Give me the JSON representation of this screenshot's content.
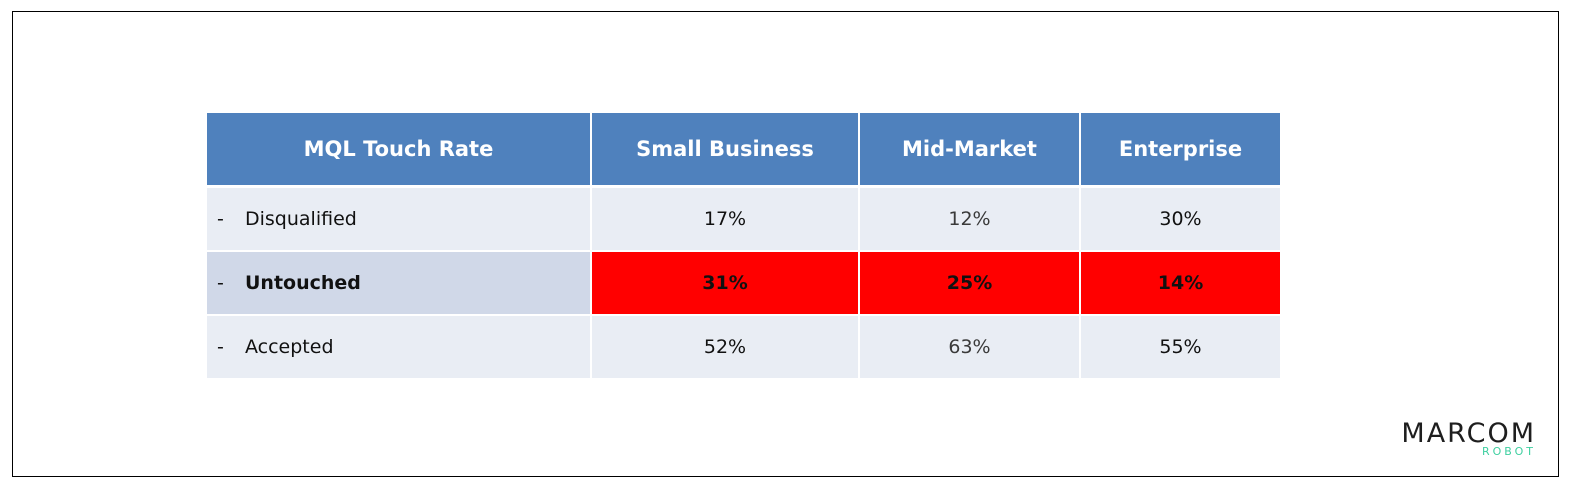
{
  "table": {
    "headers": [
      "MQL Touch Rate",
      "Small Business",
      "Mid-Market",
      "Enterprise"
    ],
    "rows": [
      {
        "dash": "-",
        "label": "Disqualified",
        "values": [
          "17%",
          "12%",
          "30%"
        ]
      },
      {
        "dash": "-",
        "label": "Untouched",
        "values": [
          "31%",
          "25%",
          "14%"
        ]
      },
      {
        "dash": "-",
        "label": "Accepted",
        "values": [
          "52%",
          "63%",
          "55%"
        ]
      }
    ]
  },
  "logo": {
    "main": "MARCOM",
    "sub": "ROBOT"
  },
  "colors": {
    "header_bg": "#4f81bd",
    "row_bg": "#e9edf4",
    "highlight_label_bg": "#d0d8e8",
    "highlight_bg": "#ff0000",
    "logo_accent": "#3ecfa0"
  }
}
